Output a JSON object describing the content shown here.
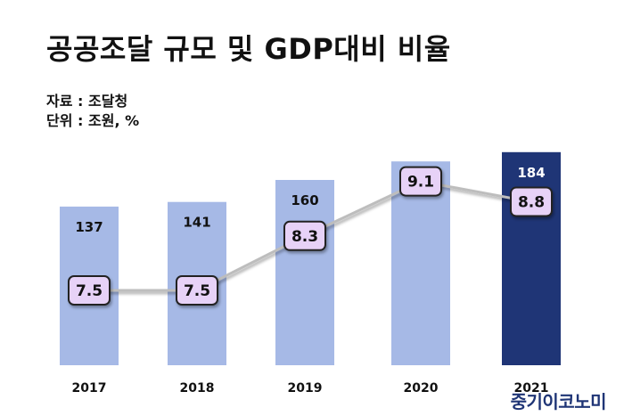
{
  "title": "공공조달 규모 및 GDP대비 비율",
  "meta": {
    "source_label": "자료",
    "source_value": "조달청",
    "unit_label": "단위",
    "unit_value": "조원, %"
  },
  "brand": "중기이코노미",
  "colors": {
    "bar": "#a6b9e6",
    "bar_highlight": "#1f3576",
    "marker_fill": "#e7d2f7",
    "marker_border": "#222222",
    "line": "#bdbdbd"
  },
  "chart_data": {
    "type": "bar",
    "categories": [
      "2017",
      "2018",
      "2019",
      "2020",
      "2021"
    ],
    "series": [
      {
        "type": "bar",
        "unit": "조원",
        "values": [
          137,
          141,
          160,
          176,
          184
        ],
        "highlight_index": 4
      },
      {
        "type": "line",
        "unit": "%",
        "values": [
          7.5,
          7.5,
          8.3,
          9.1,
          8.8
        ]
      }
    ],
    "title": "공공조달 규모 및 GDP대비 비율",
    "xlabel": "",
    "ylabel": "",
    "grid": false,
    "legend": "none"
  }
}
